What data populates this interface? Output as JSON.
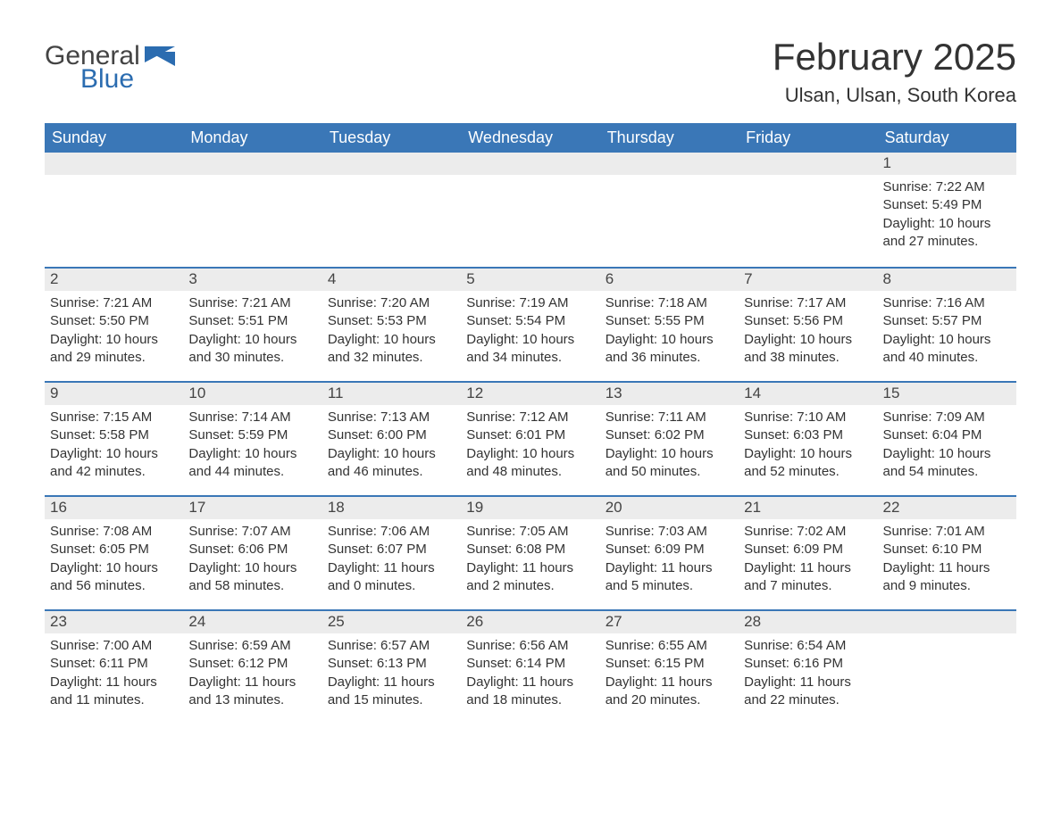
{
  "brand": {
    "word1": "General",
    "word2": "Blue"
  },
  "title": "February 2025",
  "location": "Ulsan, Ulsan, South Korea",
  "colors": {
    "header_bg": "#3a77b7",
    "header_text": "#ffffff",
    "daynum_bg": "#ececec",
    "border": "#3a77b7",
    "brand_blue": "#2b6cb0",
    "text": "#333333"
  },
  "weekday_labels": [
    "Sunday",
    "Monday",
    "Tuesday",
    "Wednesday",
    "Thursday",
    "Friday",
    "Saturday"
  ],
  "layout": {
    "first_weekday_index": 6,
    "days_in_month": 28,
    "weeks": 5
  },
  "days": [
    {
      "n": 1,
      "sunrise": "7:22 AM",
      "sunset": "5:49 PM",
      "daylight": "10 hours and 27 minutes."
    },
    {
      "n": 2,
      "sunrise": "7:21 AM",
      "sunset": "5:50 PM",
      "daylight": "10 hours and 29 minutes."
    },
    {
      "n": 3,
      "sunrise": "7:21 AM",
      "sunset": "5:51 PM",
      "daylight": "10 hours and 30 minutes."
    },
    {
      "n": 4,
      "sunrise": "7:20 AM",
      "sunset": "5:53 PM",
      "daylight": "10 hours and 32 minutes."
    },
    {
      "n": 5,
      "sunrise": "7:19 AM",
      "sunset": "5:54 PM",
      "daylight": "10 hours and 34 minutes."
    },
    {
      "n": 6,
      "sunrise": "7:18 AM",
      "sunset": "5:55 PM",
      "daylight": "10 hours and 36 minutes."
    },
    {
      "n": 7,
      "sunrise": "7:17 AM",
      "sunset": "5:56 PM",
      "daylight": "10 hours and 38 minutes."
    },
    {
      "n": 8,
      "sunrise": "7:16 AM",
      "sunset": "5:57 PM",
      "daylight": "10 hours and 40 minutes."
    },
    {
      "n": 9,
      "sunrise": "7:15 AM",
      "sunset": "5:58 PM",
      "daylight": "10 hours and 42 minutes."
    },
    {
      "n": 10,
      "sunrise": "7:14 AM",
      "sunset": "5:59 PM",
      "daylight": "10 hours and 44 minutes."
    },
    {
      "n": 11,
      "sunrise": "7:13 AM",
      "sunset": "6:00 PM",
      "daylight": "10 hours and 46 minutes."
    },
    {
      "n": 12,
      "sunrise": "7:12 AM",
      "sunset": "6:01 PM",
      "daylight": "10 hours and 48 minutes."
    },
    {
      "n": 13,
      "sunrise": "7:11 AM",
      "sunset": "6:02 PM",
      "daylight": "10 hours and 50 minutes."
    },
    {
      "n": 14,
      "sunrise": "7:10 AM",
      "sunset": "6:03 PM",
      "daylight": "10 hours and 52 minutes."
    },
    {
      "n": 15,
      "sunrise": "7:09 AM",
      "sunset": "6:04 PM",
      "daylight": "10 hours and 54 minutes."
    },
    {
      "n": 16,
      "sunrise": "7:08 AM",
      "sunset": "6:05 PM",
      "daylight": "10 hours and 56 minutes."
    },
    {
      "n": 17,
      "sunrise": "7:07 AM",
      "sunset": "6:06 PM",
      "daylight": "10 hours and 58 minutes."
    },
    {
      "n": 18,
      "sunrise": "7:06 AM",
      "sunset": "6:07 PM",
      "daylight": "11 hours and 0 minutes."
    },
    {
      "n": 19,
      "sunrise": "7:05 AM",
      "sunset": "6:08 PM",
      "daylight": "11 hours and 2 minutes."
    },
    {
      "n": 20,
      "sunrise": "7:03 AM",
      "sunset": "6:09 PM",
      "daylight": "11 hours and 5 minutes."
    },
    {
      "n": 21,
      "sunrise": "7:02 AM",
      "sunset": "6:09 PM",
      "daylight": "11 hours and 7 minutes."
    },
    {
      "n": 22,
      "sunrise": "7:01 AM",
      "sunset": "6:10 PM",
      "daylight": "11 hours and 9 minutes."
    },
    {
      "n": 23,
      "sunrise": "7:00 AM",
      "sunset": "6:11 PM",
      "daylight": "11 hours and 11 minutes."
    },
    {
      "n": 24,
      "sunrise": "6:59 AM",
      "sunset": "6:12 PM",
      "daylight": "11 hours and 13 minutes."
    },
    {
      "n": 25,
      "sunrise": "6:57 AM",
      "sunset": "6:13 PM",
      "daylight": "11 hours and 15 minutes."
    },
    {
      "n": 26,
      "sunrise": "6:56 AM",
      "sunset": "6:14 PM",
      "daylight": "11 hours and 18 minutes."
    },
    {
      "n": 27,
      "sunrise": "6:55 AM",
      "sunset": "6:15 PM",
      "daylight": "11 hours and 20 minutes."
    },
    {
      "n": 28,
      "sunrise": "6:54 AM",
      "sunset": "6:16 PM",
      "daylight": "11 hours and 22 minutes."
    }
  ],
  "labels": {
    "sunrise_prefix": "Sunrise: ",
    "sunset_prefix": "Sunset: ",
    "daylight_prefix": "Daylight: "
  }
}
